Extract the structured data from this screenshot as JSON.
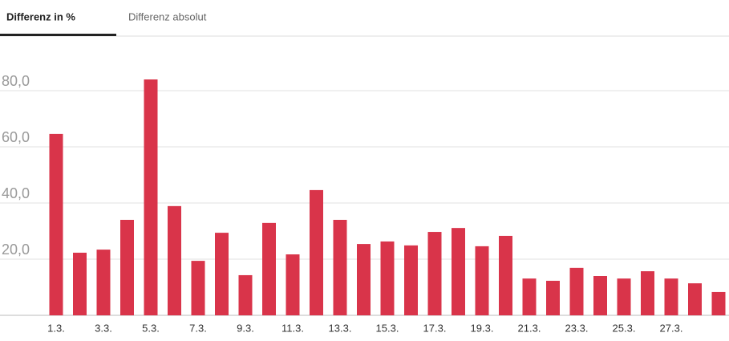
{
  "tabs": [
    {
      "label": "Differenz in %",
      "active": true
    },
    {
      "label": "Differenz absolut",
      "active": false
    }
  ],
  "chart_data": {
    "type": "bar",
    "color": "#d9344a",
    "grid": true,
    "categories": [
      "1.3.",
      null,
      "3.3.",
      null,
      "5.3.",
      null,
      "7.3.",
      null,
      "9.3.",
      null,
      "11.3.",
      null,
      "13.3.",
      null,
      "15.3.",
      null,
      "17.3.",
      null,
      "19.3.",
      null,
      "21.3.",
      null,
      "23.3.",
      null,
      "25.3.",
      null,
      "27.3.",
      null,
      null
    ],
    "values": [
      64.6,
      22.3,
      23.4,
      34,
      84,
      38.9,
      19.4,
      29.4,
      14.3,
      32.9,
      21.7,
      44.6,
      34,
      25.4,
      26.3,
      24.9,
      29.7,
      31.1,
      24.6,
      28.3,
      13.1,
      12.3,
      16.9,
      14,
      13.1,
      15.7,
      13.1,
      11.4,
      8.3
    ],
    "ylim": [
      0,
      95
    ],
    "yticks": [
      {
        "value": 20,
        "label": "20,0"
      },
      {
        "value": 40,
        "label": "40,0"
      },
      {
        "value": 60,
        "label": "60,0"
      },
      {
        "value": 80,
        "label": "80,0"
      }
    ]
  }
}
